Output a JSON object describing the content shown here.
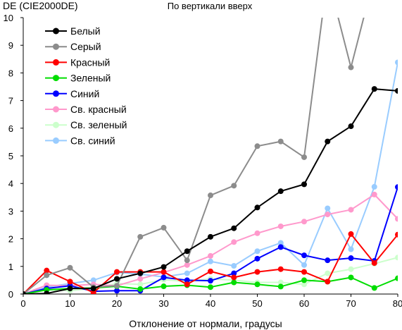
{
  "chart_data": {
    "type": "line",
    "title": "По вертикали вверх",
    "ylabel": "DE (CIE2000DE)",
    "xlabel": "Отклонение от нормали, градусы",
    "xlim": [
      0,
      80
    ],
    "ylim": [
      0,
      10
    ],
    "xticks": [
      0,
      10,
      20,
      30,
      40,
      50,
      60,
      70,
      80
    ],
    "yticks": [
      0,
      1,
      2,
      3,
      4,
      5,
      6,
      7,
      8,
      9,
      10
    ],
    "grid": false,
    "legend": "top-left",
    "x": [
      0,
      5,
      10,
      15,
      20,
      25,
      30,
      35,
      40,
      45,
      50,
      55,
      60,
      65,
      70,
      75,
      80
    ],
    "series": [
      {
        "name": "Белый",
        "color": "#000000",
        "values": [
          0,
          0.02,
          0.2,
          0.2,
          0.55,
          0.75,
          0.98,
          1.55,
          2.07,
          2.38,
          3.13,
          3.72,
          3.97,
          5.52,
          6.07,
          7.42,
          7.35
        ]
      },
      {
        "name": "Серый",
        "color": "#8c8c8c",
        "values": [
          0,
          0.68,
          0.95,
          0.25,
          0.3,
          2.07,
          2.4,
          1.22,
          3.57,
          3.92,
          5.35,
          5.52,
          4.95,
          11.5,
          8.2,
          11.5,
          null
        ]
      },
      {
        "name": "Красный",
        "color": "#ff0000",
        "values": [
          0,
          0.85,
          0.45,
          0.05,
          0.8,
          0.8,
          0.8,
          0.35,
          0.82,
          0.6,
          0.8,
          0.9,
          0.8,
          0.45,
          2.17,
          1.12,
          2.15
        ]
      },
      {
        "name": "Зеленый",
        "color": "#00dd00",
        "values": [
          0,
          0.15,
          0.2,
          0.22,
          0.28,
          0.18,
          0.28,
          0.32,
          0.25,
          0.42,
          0.35,
          0.27,
          0.5,
          0.45,
          0.6,
          0.22,
          0.57
        ]
      },
      {
        "name": "Синий",
        "color": "#0000ff",
        "values": [
          0,
          0.2,
          0.3,
          0.1,
          0.12,
          0.12,
          0.6,
          0.5,
          0.48,
          0.75,
          1.28,
          1.7,
          1.4,
          1.22,
          1.3,
          1.2,
          3.87
        ]
      },
      {
        "name": "Св. красный",
        "color": "#ff99cc",
        "values": [
          0,
          0.32,
          0.3,
          0.35,
          0.3,
          0.55,
          0.78,
          1.05,
          1.38,
          1.88,
          2.2,
          2.45,
          2.62,
          2.88,
          3.05,
          3.6,
          2.72
        ]
      },
      {
        "name": "Св. зеленый",
        "color": "#ccffcc",
        "values": [
          0,
          0.15,
          0.12,
          0.2,
          0.38,
          0.35,
          0.52,
          0.45,
          0.55,
          0.5,
          0.42,
          0.42,
          0.35,
          0.75,
          0.9,
          1.1,
          1.32
        ]
      },
      {
        "name": "Св. синий",
        "color": "#99ccff",
        "values": [
          0,
          0.25,
          0.38,
          0.5,
          0.78,
          0.72,
          0.62,
          0.75,
          1.18,
          1.02,
          1.55,
          1.85,
          1.05,
          3.1,
          1.62,
          3.88,
          8.38
        ]
      }
    ]
  }
}
